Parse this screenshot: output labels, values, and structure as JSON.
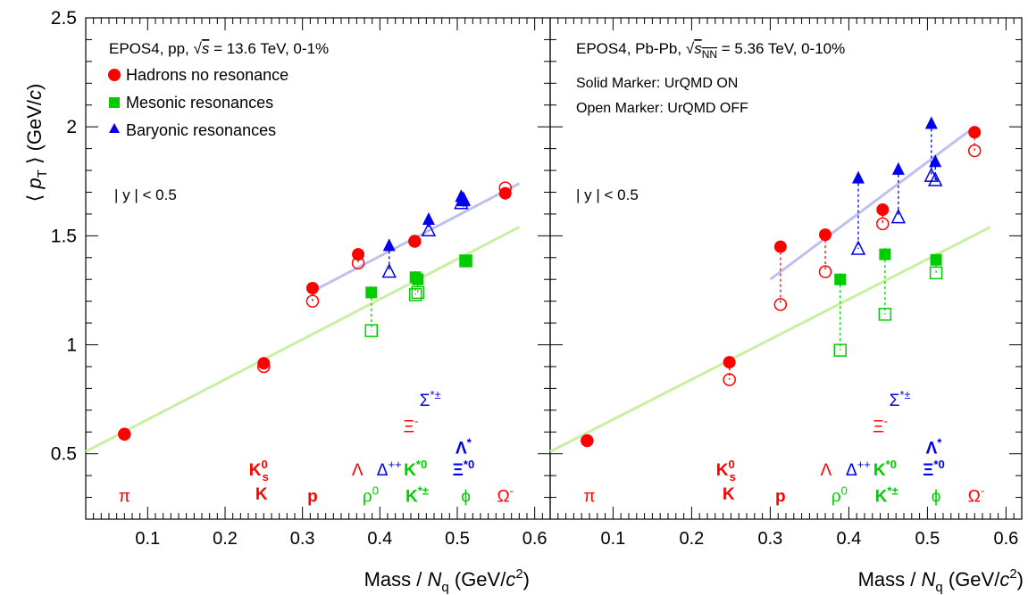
{
  "y_axis_title": {
    "open": "⟨ ",
    "p": "p",
    "sub": "T",
    "close": " ⟩ (GeV/",
    "c": "c",
    "end": ")"
  },
  "x_axis_title": {
    "pre": "Mass / ",
    "n": "N",
    "sub": "q",
    "mid": " (GeV/",
    "c": "c",
    "sup": "2",
    "end": ")"
  },
  "colors": {
    "hadrons": "#ff0000",
    "mesons": "#00cc00",
    "baryons": "#0000ee",
    "red_fit": "#c0c0f0",
    "green_fit": "#c8f0a0"
  },
  "chart_data": [
    {
      "type": "scatter",
      "panel": "left",
      "info": {
        "line1": {
          "a": "EPOS4, pp,  ",
          "sqrt": "√",
          "var": "s",
          "b": " = 13.6 TeV, 0-1%"
        },
        "rapidity": "| y | < 0.5"
      },
      "legend": [
        {
          "label": "Hadrons no resonance",
          "marker": "circle",
          "color": "#ff0000"
        },
        {
          "label": "Mesonic resonances",
          "marker": "square",
          "color": "#00cc00"
        },
        {
          "label": "Baryonic resonances",
          "marker": "triangle",
          "color": "#0000ee"
        }
      ],
      "xlim": [
        0.02,
        0.62
      ],
      "ylim": [
        0.2,
        2.5
      ],
      "x_ticks": [
        "0.1",
        "0.2",
        "0.3",
        "0.4",
        "0.5",
        "0.6"
      ],
      "y_ticks": [
        "0.5",
        "1",
        "1.5",
        "2",
        "2.5"
      ],
      "series": [
        {
          "name": "Hadrons no resonance",
          "marker": "circle",
          "color": "#ff0000",
          "solid": [
            [
              0.07,
              0.59
            ],
            [
              0.25,
              0.915
            ],
            [
              0.313,
              1.26
            ],
            [
              0.372,
              1.415
            ],
            [
              0.445,
              1.475
            ],
            [
              0.562,
              1.695
            ]
          ],
          "open": [
            [
              0.07,
              0.59
            ],
            [
              0.25,
              0.9
            ],
            [
              0.313,
              1.2
            ],
            [
              0.372,
              1.375
            ],
            [
              0.445,
              1.475
            ],
            [
              0.562,
              1.72
            ]
          ]
        },
        {
          "name": "Mesonic resonances",
          "marker": "square",
          "color": "#00cc00",
          "solid": [
            [
              0.389,
              1.24
            ],
            [
              0.446,
              1.31
            ],
            [
              0.449,
              1.3
            ],
            [
              0.511,
              1.385
            ]
          ],
          "open": [
            [
              0.389,
              1.065
            ],
            [
              0.446,
              1.23
            ],
            [
              0.449,
              1.24
            ],
            [
              0.511,
              1.385
            ]
          ]
        },
        {
          "name": "Baryonic resonances",
          "marker": "triangle",
          "color": "#0000ee",
          "solid": [
            [
              0.412,
              1.455
            ],
            [
              0.463,
              1.575
            ],
            [
              0.505,
              1.68
            ],
            [
              0.508,
              1.66
            ]
          ],
          "open": [
            [
              0.412,
              1.335
            ],
            [
              0.463,
              1.525
            ],
            [
              0.505,
              1.65
            ],
            [
              0.508,
              1.665
            ]
          ]
        }
      ],
      "fits": [
        {
          "color": "#c0c0f0",
          "from": [
            0.31,
            1.24
          ],
          "to": [
            0.58,
            1.74
          ]
        },
        {
          "color": "#c8f0a0",
          "from": [
            0.02,
            0.51
          ],
          "to": [
            0.58,
            1.54
          ]
        }
      ],
      "particle_labels": [
        {
          "text": "π",
          "x": 0.07,
          "y": 0.28,
          "color": "#ff0000"
        },
        {
          "text": "K",
          "x": 0.247,
          "y": 0.29,
          "color": "#ff0000",
          "bold": true
        },
        {
          "text": "K",
          "sup": "0",
          "sub": "s",
          "x": 0.243,
          "y": 0.4,
          "color": "#ff0000",
          "bold": true
        },
        {
          "text": "p",
          "x": 0.313,
          "y": 0.28,
          "color": "#ff0000",
          "bold": true
        },
        {
          "text": "Λ",
          "x": 0.371,
          "y": 0.4,
          "color": "#ff0000"
        },
        {
          "text": "Ξ",
          "sup": "-",
          "x": 0.44,
          "y": 0.6,
          "color": "#ff0000"
        },
        {
          "text": "Ω",
          "sup": "-",
          "x": 0.562,
          "y": 0.28,
          "color": "#ff0000"
        },
        {
          "text": "ρ",
          "sup": "0",
          "x": 0.388,
          "y": 0.28,
          "color": "#00cc00"
        },
        {
          "text": "K",
          "sup": "*0",
          "x": 0.446,
          "y": 0.4,
          "color": "#00cc00",
          "bold": true
        },
        {
          "text": "K",
          "sup": "*±",
          "x": 0.448,
          "y": 0.28,
          "color": "#00cc00",
          "bold": true
        },
        {
          "text": "ϕ",
          "x": 0.511,
          "y": 0.28,
          "color": "#00cc00"
        },
        {
          "text": "Δ",
          "sup": "++",
          "x": 0.412,
          "y": 0.4,
          "color": "#0000ee"
        },
        {
          "text": "Σ",
          "sup": "*±",
          "x": 0.465,
          "y": 0.72,
          "color": "#0000ee"
        },
        {
          "text": "Λ",
          "sup": "*",
          "x": 0.508,
          "y": 0.5,
          "color": "#0000ee",
          "bold": true
        },
        {
          "text": "Ξ",
          "sup": "*0",
          "x": 0.508,
          "y": 0.4,
          "color": "#0000ee",
          "bold": true
        }
      ]
    },
    {
      "type": "scatter",
      "panel": "right",
      "info": {
        "line1": {
          "a": "EPOS4, Pb-Pb,  ",
          "sqrt": "√",
          "var": "s",
          "varsub": "NN",
          "b": " = 5.36 TeV, 0-10%"
        },
        "solid_note": "Solid Marker: UrQMD ON",
        "open_note": "Open Marker: UrQMD OFF",
        "rapidity": "| y | < 0.5"
      },
      "xlim": [
        0.02,
        0.62
      ],
      "ylim": [
        0.2,
        2.5
      ],
      "x_ticks": [
        "0.1",
        "0.2",
        "0.3",
        "0.4",
        "0.5",
        "0.6"
      ],
      "series": [
        {
          "name": "Hadrons no resonance",
          "marker": "circle",
          "color": "#ff0000",
          "solid": [
            [
              0.067,
              0.56
            ],
            [
              0.248,
              0.92
            ],
            [
              0.313,
              1.45
            ],
            [
              0.37,
              1.505
            ],
            [
              0.443,
              1.62
            ],
            [
              0.56,
              1.975
            ]
          ],
          "open": [
            [
              0.067,
              0.56
            ],
            [
              0.248,
              0.84
            ],
            [
              0.313,
              1.185
            ],
            [
              0.37,
              1.335
            ],
            [
              0.443,
              1.555
            ],
            [
              0.56,
              1.89
            ]
          ]
        },
        {
          "name": "Mesonic resonances",
          "marker": "square",
          "color": "#00cc00",
          "solid": [
            [
              0.389,
              1.3
            ],
            [
              0.446,
              1.415
            ],
            [
              0.511,
              1.39
            ]
          ],
          "open": [
            [
              0.389,
              0.975
            ],
            [
              0.446,
              1.14
            ],
            [
              0.511,
              1.33
            ]
          ]
        },
        {
          "name": "Baryonic resonances",
          "marker": "triangle",
          "color": "#0000ee",
          "solid": [
            [
              0.412,
              1.765
            ],
            [
              0.463,
              1.805
            ],
            [
              0.505,
              2.015
            ],
            [
              0.51,
              1.84
            ]
          ],
          "open": [
            [
              0.412,
              1.44
            ],
            [
              0.463,
              1.585
            ],
            [
              0.505,
              1.775
            ],
            [
              0.51,
              1.755
            ]
          ]
        }
      ],
      "fits": [
        {
          "color": "#c0c0f0",
          "from": [
            0.3,
            1.3
          ],
          "to": [
            0.56,
            2.0
          ]
        },
        {
          "color": "#c8f0a0",
          "from": [
            0.02,
            0.51
          ],
          "to": [
            0.58,
            1.54
          ]
        }
      ],
      "particle_labels": [
        {
          "text": "π",
          "x": 0.07,
          "y": 0.28,
          "color": "#ff0000"
        },
        {
          "text": "K",
          "x": 0.247,
          "y": 0.29,
          "color": "#ff0000",
          "bold": true
        },
        {
          "text": "K",
          "sup": "0",
          "sub": "s",
          "x": 0.243,
          "y": 0.4,
          "color": "#ff0000",
          "bold": true
        },
        {
          "text": "p",
          "x": 0.313,
          "y": 0.28,
          "color": "#ff0000",
          "bold": true
        },
        {
          "text": "Λ",
          "x": 0.371,
          "y": 0.4,
          "color": "#ff0000"
        },
        {
          "text": "Ξ",
          "sup": "-",
          "x": 0.44,
          "y": 0.6,
          "color": "#ff0000"
        },
        {
          "text": "Ω",
          "sup": "-",
          "x": 0.562,
          "y": 0.28,
          "color": "#ff0000"
        },
        {
          "text": "ρ",
          "sup": "0",
          "x": 0.388,
          "y": 0.28,
          "color": "#00cc00"
        },
        {
          "text": "K",
          "sup": "*0",
          "x": 0.446,
          "y": 0.4,
          "color": "#00cc00",
          "bold": true
        },
        {
          "text": "K",
          "sup": "*±",
          "x": 0.448,
          "y": 0.28,
          "color": "#00cc00",
          "bold": true
        },
        {
          "text": "ϕ",
          "x": 0.511,
          "y": 0.28,
          "color": "#00cc00"
        },
        {
          "text": "Δ",
          "sup": "++",
          "x": 0.412,
          "y": 0.4,
          "color": "#0000ee"
        },
        {
          "text": "Σ",
          "sup": "*±",
          "x": 0.465,
          "y": 0.72,
          "color": "#0000ee"
        },
        {
          "text": "Λ",
          "sup": "*",
          "x": 0.508,
          "y": 0.5,
          "color": "#0000ee",
          "bold": true
        },
        {
          "text": "Ξ",
          "sup": "*0",
          "x": 0.508,
          "y": 0.4,
          "color": "#0000ee",
          "bold": true
        }
      ]
    }
  ]
}
